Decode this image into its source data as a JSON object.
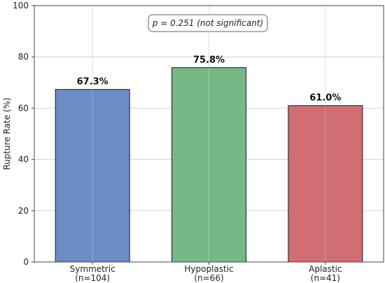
{
  "chart_data": {
    "type": "bar",
    "categories": [
      "Symmetric",
      "Hypoplastic",
      "Aplastic"
    ],
    "category_sublabels": [
      "(n=104)",
      "(n=66)",
      "(n=41)"
    ],
    "values": [
      67.3,
      75.8,
      61.0
    ],
    "value_labels": [
      "67.3%",
      "75.8%",
      "61.0%"
    ],
    "colors": [
      "#6b8cc4",
      "#77b887",
      "#d06e73"
    ],
    "ylabel": "Rupture Rate (%)",
    "ylim": [
      0,
      100
    ],
    "yticks": [
      0,
      20,
      40,
      60,
      80,
      100
    ],
    "grid": true,
    "annotation": "p = 0.251 (not significant)"
  }
}
